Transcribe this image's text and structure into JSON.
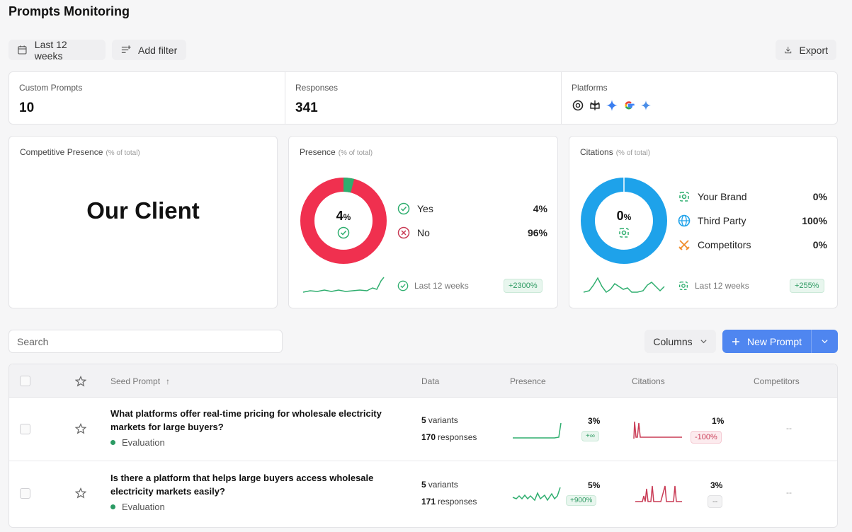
{
  "page": {
    "title": "Prompts Monitoring"
  },
  "toolbar": {
    "date_range": "Last 12 weeks",
    "add_filter": "Add filter",
    "export": "Export"
  },
  "kpis": [
    {
      "label": "Custom Prompts",
      "value": "10"
    },
    {
      "label": "Responses",
      "value": "341"
    },
    {
      "label": "Platforms",
      "icons": [
        "chatgpt-icon",
        "perplexity-icon",
        "gemini-icon",
        "google-icon",
        "ai-sparkle-icon"
      ]
    }
  ],
  "competitive": {
    "title": "Competitive Presence",
    "subtitle": "(% of total)",
    "big_text": "Our Client"
  },
  "presence": {
    "title": "Presence",
    "subtitle": "(% of total)",
    "center_value": "4",
    "center_unit": "%",
    "yes_label": "Yes",
    "yes_value": "4%",
    "no_label": "No",
    "no_value": "96%",
    "yes_fraction": 0.04,
    "colors": {
      "yes": "#2fae6f",
      "no": "#f0304f"
    },
    "footer_label": "Last 12 weeks",
    "footer_badge": "+2300%"
  },
  "citations": {
    "title": "Citations",
    "subtitle": "(% of total)",
    "center_value": "0",
    "center_unit": "%",
    "items": [
      {
        "label": "Your Brand",
        "value": "0%"
      },
      {
        "label": "Third Party",
        "value": "100%"
      },
      {
        "label": "Competitors",
        "value": "0%"
      }
    ],
    "colors": {
      "third_party": "#1ea2ea"
    },
    "footer_label": "Last 12 weeks",
    "footer_badge": "+255%"
  },
  "search": {
    "placeholder": "Search"
  },
  "buttons": {
    "columns": "Columns",
    "new_prompt": "New Prompt"
  },
  "table": {
    "headers": {
      "prompt": "Seed Prompt",
      "data": "Data",
      "presence": "Presence",
      "citations": "Citations",
      "competitors": "Competitors"
    },
    "rows": [
      {
        "prompt": "What platforms offer real-time pricing for wholesale electricity markets for large buyers?",
        "tag": "Evaluation",
        "variants_n": "5",
        "variants_label": "variants",
        "responses_n": "170",
        "responses_label": "responses",
        "presence_pct": "3%",
        "presence_badge": "+∞",
        "citations_pct": "1%",
        "citations_badge": "-100%",
        "competitors": "--"
      },
      {
        "prompt": "Is there a platform that helps large buyers access wholesale electricity markets easily?",
        "tag": "Evaluation",
        "variants_n": "5",
        "variants_label": "variants",
        "responses_n": "171",
        "responses_label": "responses",
        "presence_pct": "5%",
        "presence_badge": "+900%",
        "citations_pct": "3%",
        "citations_badge": "--",
        "competitors": "--"
      }
    ]
  }
}
